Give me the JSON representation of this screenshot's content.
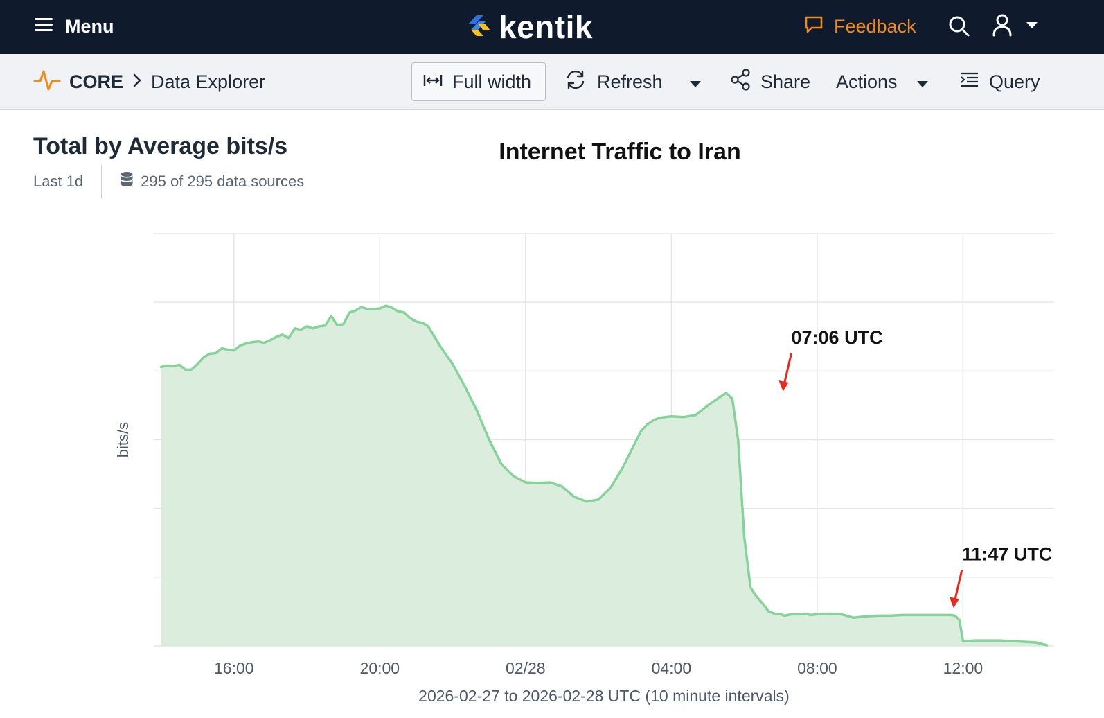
{
  "topbar": {
    "menu_label": "Menu",
    "logo_text": "kentik",
    "feedback_label": "Feedback",
    "accent_color": "#f08a1d",
    "background_color": "#0f1b2d"
  },
  "breadcrumb": {
    "section": "CORE",
    "page": "Data Explorer"
  },
  "toolbar": {
    "full_width_label": "Full width",
    "refresh_label": "Refresh",
    "share_label": "Share",
    "actions_label": "Actions",
    "query_label": "Query"
  },
  "panel": {
    "title": "Total by Average bits/s",
    "time_range": "Last 1d",
    "data_sources": "295 of 295 data sources"
  },
  "chart_data": {
    "type": "area",
    "title": "Internet Traffic to Iran",
    "ylabel": "bits/s",
    "xlabel": "2026-02-27 to 2026-02-28 UTC (10 minute intervals)",
    "x_tick_labels": [
      "16:00",
      "20:00",
      "02/28",
      "04:00",
      "08:00",
      "12:00"
    ],
    "x_tick_hours": [
      16,
      20,
      24,
      28,
      32,
      36
    ],
    "xlim_hours": [
      13.8,
      38.5
    ],
    "ylim": [
      0,
      6
    ],
    "y_tick_labels_shown": false,
    "grid": true,
    "series_color": "#86d39a",
    "fill_color": "#dbeede",
    "annotation_color": "#e8291c",
    "series": [
      {
        "x_hours": [
          14.0,
          14.17,
          14.33,
          14.5,
          14.67,
          14.83,
          15.0,
          15.17,
          15.33,
          15.5,
          15.67,
          15.83,
          16.0,
          16.17,
          16.33,
          16.5,
          16.67,
          16.83,
          17.0,
          17.17,
          17.33,
          17.5,
          17.67,
          17.83,
          18.0,
          18.17,
          18.33,
          18.5,
          18.67,
          18.83,
          19.0,
          19.17,
          19.33,
          19.5,
          19.67,
          19.83,
          20.0,
          20.17,
          20.33,
          20.5,
          20.67,
          20.83,
          21.0,
          21.17,
          21.33,
          21.5,
          21.67,
          22.0,
          22.33,
          22.67,
          23.0,
          23.33,
          23.67,
          24.0,
          24.33,
          24.67,
          25.0,
          25.33,
          25.67,
          26.0,
          26.33,
          26.67,
          27.0,
          27.17,
          27.33,
          27.5,
          27.67,
          28.0,
          28.33,
          28.67,
          29.0,
          29.33,
          29.5,
          29.67,
          29.83,
          30.0,
          30.17,
          30.33,
          30.5,
          30.67,
          30.83,
          31.0,
          31.1,
          31.2,
          31.3,
          31.5,
          31.67,
          31.83,
          32.0,
          32.33,
          32.67,
          33.0,
          33.33,
          33.67,
          34.0,
          34.33,
          34.67,
          35.0,
          35.33,
          35.67,
          35.78,
          35.9,
          36.0,
          36.33,
          36.67,
          37.0,
          37.33,
          37.67,
          38.0,
          38.3
        ],
        "values": [
          4.06,
          4.08,
          4.07,
          4.09,
          4.02,
          4.02,
          4.1,
          4.2,
          4.25,
          4.26,
          4.33,
          4.31,
          4.3,
          4.37,
          4.4,
          4.42,
          4.43,
          4.41,
          4.45,
          4.5,
          4.53,
          4.48,
          4.62,
          4.6,
          4.65,
          4.62,
          4.65,
          4.66,
          4.8,
          4.67,
          4.68,
          4.85,
          4.88,
          4.93,
          4.9,
          4.9,
          4.91,
          4.95,
          4.92,
          4.87,
          4.85,
          4.77,
          4.72,
          4.7,
          4.65,
          4.5,
          4.35,
          4.1,
          3.78,
          3.42,
          3.0,
          2.65,
          2.47,
          2.38,
          2.37,
          2.38,
          2.32,
          2.17,
          2.1,
          2.13,
          2.3,
          2.6,
          2.95,
          3.13,
          3.22,
          3.28,
          3.32,
          3.34,
          3.33,
          3.36,
          3.5,
          3.62,
          3.68,
          3.6,
          3.0,
          1.58,
          0.85,
          0.72,
          0.62,
          0.5,
          0.47,
          0.46,
          0.44,
          0.45,
          0.46,
          0.46,
          0.47,
          0.45,
          0.46,
          0.47,
          0.46,
          0.41,
          0.43,
          0.44,
          0.44,
          0.45,
          0.45,
          0.45,
          0.45,
          0.45,
          0.44,
          0.38,
          0.07,
          0.08,
          0.08,
          0.08,
          0.07,
          0.06,
          0.05,
          0.01
        ]
      }
    ],
    "annotations": [
      {
        "label": "07:06 UTC",
        "x_hours": 31.1,
        "y": 3.62
      },
      {
        "label": "11:47 UTC",
        "x_hours": 35.78,
        "y": 0.47
      }
    ]
  }
}
